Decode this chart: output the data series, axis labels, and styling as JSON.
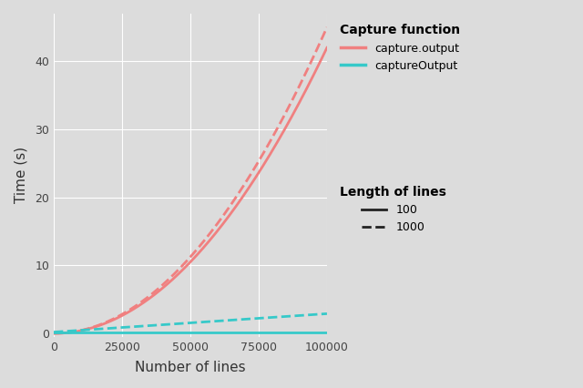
{
  "title": "",
  "xlabel": "Number of lines",
  "ylabel": "Time (s)",
  "bg_color": "#DCDCDC",
  "grid_color": "#FFFFFF",
  "salmon_color": "#F08080",
  "teal_color": "#36C9C9",
  "x_max": 100000,
  "y_max": 47,
  "y_min": -0.5,
  "legend_capture_title": "Capture function",
  "legend_length_title": "Length of lines",
  "legend_items_capture": [
    "capture.output",
    "captureOutput"
  ],
  "legend_items_length": [
    "100",
    "1000"
  ],
  "x_ticks": [
    0,
    25000,
    50000,
    75000,
    100000
  ],
  "y_ticks": [
    0,
    10,
    20,
    30,
    40
  ],
  "co_solid_a": 4.2e-09,
  "co_solid_b": 0.0,
  "co_solid_end": 42.0,
  "co_dashed_end": 45.0,
  "cO_solid_val": 0.15,
  "cO_dashed_a": 2.5e-08,
  "cO_dashed_b": 0.35,
  "figsize": [
    6.4,
    4.26
  ],
  "dpi": 100
}
